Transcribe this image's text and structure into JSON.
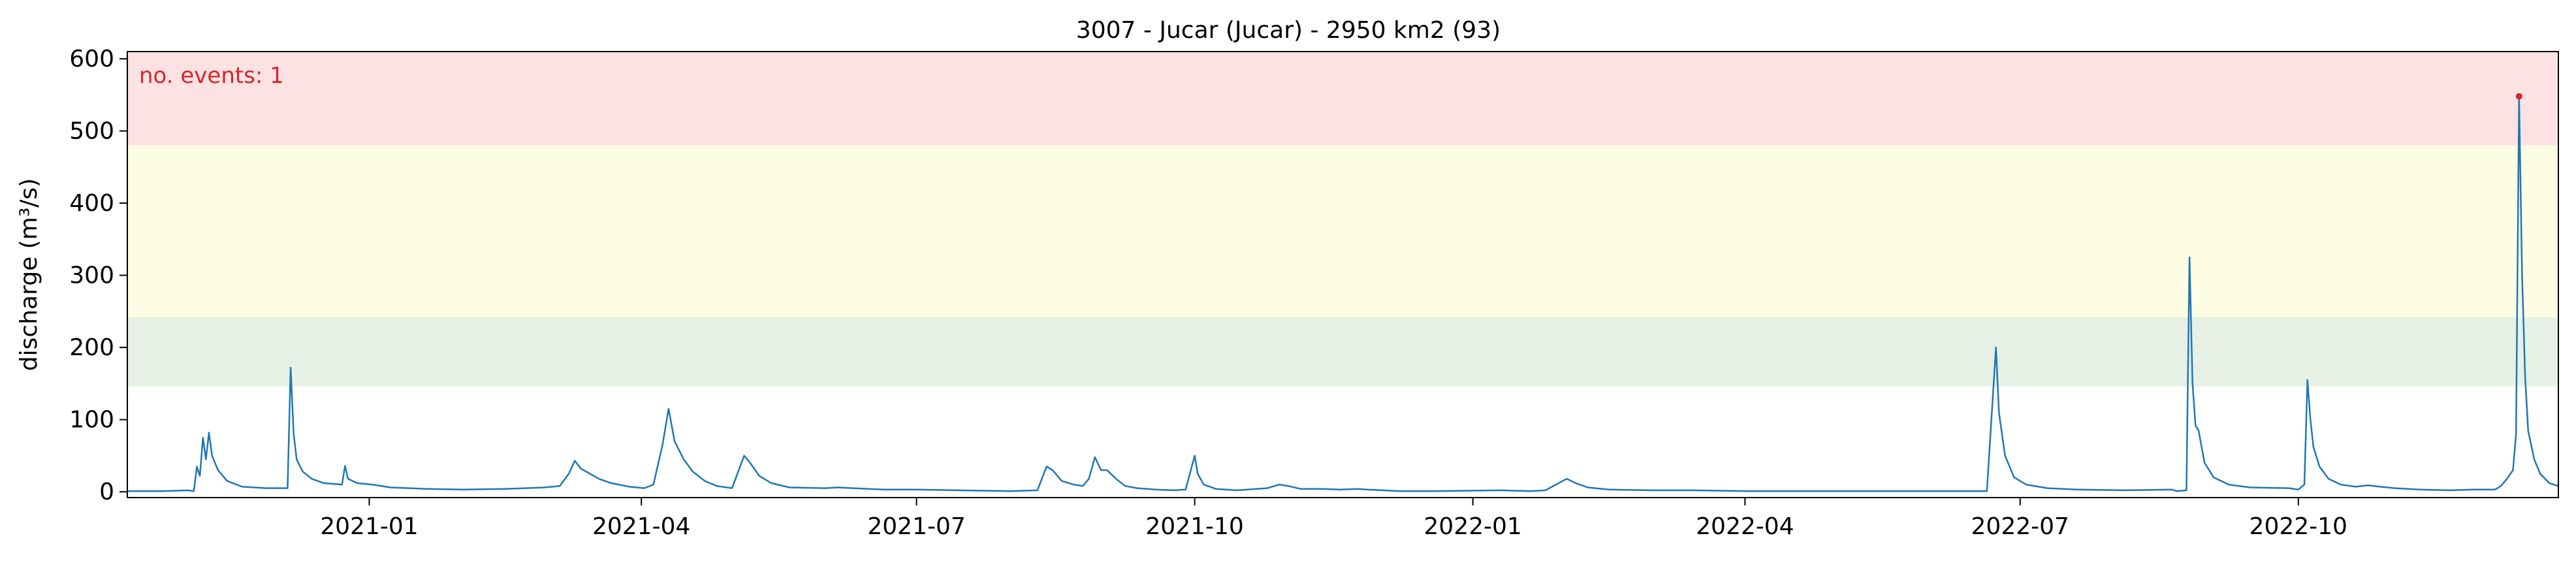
{
  "chart_data": {
    "type": "line",
    "title": "3007 - Jucar (Jucar) - 2950 km2 (93)",
    "xlabel": "",
    "ylabel": "discharge (m³/s)",
    "x_range": [
      "2020-10-13",
      "2022-12-26"
    ],
    "ylim": [
      -8,
      610
    ],
    "yticks": [
      0,
      100,
      200,
      300,
      400,
      500,
      600
    ],
    "xticks": [
      {
        "date": "2021-01-01",
        "label": "2021-01"
      },
      {
        "date": "2021-04-01",
        "label": "2021-04"
      },
      {
        "date": "2021-07-01",
        "label": "2021-07"
      },
      {
        "date": "2021-10-01",
        "label": "2021-10"
      },
      {
        "date": "2022-01-01",
        "label": "2022-01"
      },
      {
        "date": "2022-04-01",
        "label": "2022-04"
      },
      {
        "date": "2022-07-01",
        "label": "2022-07"
      },
      {
        "date": "2022-10-01",
        "label": "2022-10"
      }
    ],
    "threshold_bands": [
      {
        "from": 146,
        "to": 242,
        "color": "#e6f0e4"
      },
      {
        "from": 242,
        "to": 480,
        "color": "#fdfde3"
      },
      {
        "from": 480,
        "to": 610,
        "color": "#fde2e4"
      }
    ],
    "annotation": {
      "text": "no. events: 1",
      "color": "#d62728"
    },
    "series_color": "#1f77b4",
    "event_color": "#d62728",
    "events": [
      {
        "date": "2022-12-13",
        "value": 548
      }
    ],
    "grid": false,
    "series": [
      {
        "values": [
          [
            "2020-10-13",
            1
          ],
          [
            "2020-10-25",
            1
          ],
          [
            "2020-11-02",
            2
          ],
          [
            "2020-11-04",
            1
          ],
          [
            "2020-11-05",
            35
          ],
          [
            "2020-11-06",
            22
          ],
          [
            "2020-11-07",
            75
          ],
          [
            "2020-11-08",
            45
          ],
          [
            "2020-11-09",
            82
          ],
          [
            "2020-11-10",
            50
          ],
          [
            "2020-11-12",
            30
          ],
          [
            "2020-11-15",
            15
          ],
          [
            "2020-11-20",
            7
          ],
          [
            "2020-11-28",
            5
          ],
          [
            "2020-12-05",
            5
          ],
          [
            "2020-12-06",
            172
          ],
          [
            "2020-12-07",
            80
          ],
          [
            "2020-12-08",
            45
          ],
          [
            "2020-12-10",
            28
          ],
          [
            "2020-12-13",
            18
          ],
          [
            "2020-12-17",
            12
          ],
          [
            "2020-12-23",
            10
          ],
          [
            "2020-12-24",
            36
          ],
          [
            "2020-12-25",
            18
          ],
          [
            "2020-12-28",
            12
          ],
          [
            "2021-01-02",
            10
          ],
          [
            "2021-01-08",
            6
          ],
          [
            "2021-01-20",
            4
          ],
          [
            "2021-02-01",
            3
          ],
          [
            "2021-02-15",
            4
          ],
          [
            "2021-02-28",
            6
          ],
          [
            "2021-03-05",
            8
          ],
          [
            "2021-03-08",
            25
          ],
          [
            "2021-03-10",
            43
          ],
          [
            "2021-03-12",
            32
          ],
          [
            "2021-03-15",
            25
          ],
          [
            "2021-03-18",
            18
          ],
          [
            "2021-03-22",
            12
          ],
          [
            "2021-03-28",
            7
          ],
          [
            "2021-04-02",
            5
          ],
          [
            "2021-04-05",
            10
          ],
          [
            "2021-04-08",
            65
          ],
          [
            "2021-04-10",
            115
          ],
          [
            "2021-04-12",
            70
          ],
          [
            "2021-04-15",
            45
          ],
          [
            "2021-04-18",
            28
          ],
          [
            "2021-04-22",
            15
          ],
          [
            "2021-04-26",
            8
          ],
          [
            "2021-05-01",
            5
          ],
          [
            "2021-05-05",
            50
          ],
          [
            "2021-05-07",
            40
          ],
          [
            "2021-05-10",
            22
          ],
          [
            "2021-05-14",
            12
          ],
          [
            "2021-05-20",
            6
          ],
          [
            "2021-06-01",
            5
          ],
          [
            "2021-06-05",
            6
          ],
          [
            "2021-06-10",
            5
          ],
          [
            "2021-06-20",
            3
          ],
          [
            "2021-07-01",
            3
          ],
          [
            "2021-07-15",
            2
          ],
          [
            "2021-08-01",
            1
          ],
          [
            "2021-08-10",
            2
          ],
          [
            "2021-08-13",
            35
          ],
          [
            "2021-08-15",
            30
          ],
          [
            "2021-08-18",
            15
          ],
          [
            "2021-08-22",
            10
          ],
          [
            "2021-08-25",
            8
          ],
          [
            "2021-08-27",
            18
          ],
          [
            "2021-08-29",
            48
          ],
          [
            "2021-08-31",
            30
          ],
          [
            "2021-09-02",
            30
          ],
          [
            "2021-09-05",
            18
          ],
          [
            "2021-09-08",
            8
          ],
          [
            "2021-09-12",
            5
          ],
          [
            "2021-09-18",
            3
          ],
          [
            "2021-09-24",
            2
          ],
          [
            "2021-09-28",
            3
          ],
          [
            "2021-10-01",
            50
          ],
          [
            "2021-10-02",
            25
          ],
          [
            "2021-10-04",
            10
          ],
          [
            "2021-10-08",
            4
          ],
          [
            "2021-10-15",
            2
          ],
          [
            "2021-10-25",
            5
          ],
          [
            "2021-10-29",
            10
          ],
          [
            "2021-11-01",
            8
          ],
          [
            "2021-11-05",
            4
          ],
          [
            "2021-11-12",
            4
          ],
          [
            "2021-11-18",
            3
          ],
          [
            "2021-11-24",
            4
          ],
          [
            "2021-11-27",
            3
          ],
          [
            "2021-12-08",
            1
          ],
          [
            "2021-12-20",
            1
          ],
          [
            "2022-01-10",
            2
          ],
          [
            "2022-01-20",
            1
          ],
          [
            "2022-01-25",
            2
          ],
          [
            "2022-02-01",
            18
          ],
          [
            "2022-02-04",
            12
          ],
          [
            "2022-02-08",
            6
          ],
          [
            "2022-02-15",
            3
          ],
          [
            "2022-03-01",
            2
          ],
          [
            "2022-03-15",
            2
          ],
          [
            "2022-04-01",
            1
          ],
          [
            "2022-05-01",
            1
          ],
          [
            "2022-06-01",
            1
          ],
          [
            "2022-06-20",
            1
          ],
          [
            "2022-06-23",
            200
          ],
          [
            "2022-06-24",
            110
          ],
          [
            "2022-06-26",
            50
          ],
          [
            "2022-06-29",
            20
          ],
          [
            "2022-07-03",
            10
          ],
          [
            "2022-07-10",
            5
          ],
          [
            "2022-07-20",
            3
          ],
          [
            "2022-08-05",
            2
          ],
          [
            "2022-08-20",
            3
          ],
          [
            "2022-08-22",
            1
          ],
          [
            "2022-08-25",
            2
          ],
          [
            "2022-08-26",
            325
          ],
          [
            "2022-08-27",
            150
          ],
          [
            "2022-08-28",
            92
          ],
          [
            "2022-08-29",
            85
          ],
          [
            "2022-08-31",
            40
          ],
          [
            "2022-09-03",
            20
          ],
          [
            "2022-09-08",
            10
          ],
          [
            "2022-09-15",
            6
          ],
          [
            "2022-09-28",
            5
          ],
          [
            "2022-10-01",
            3
          ],
          [
            "2022-10-03",
            10
          ],
          [
            "2022-10-04",
            155
          ],
          [
            "2022-10-05",
            100
          ],
          [
            "2022-10-06",
            62
          ],
          [
            "2022-10-08",
            35
          ],
          [
            "2022-10-11",
            18
          ],
          [
            "2022-10-15",
            10
          ],
          [
            "2022-10-20",
            7
          ],
          [
            "2022-10-24",
            9
          ],
          [
            "2022-10-28",
            7
          ],
          [
            "2022-11-02",
            5
          ],
          [
            "2022-11-10",
            3
          ],
          [
            "2022-11-20",
            2
          ],
          [
            "2022-11-28",
            3
          ],
          [
            "2022-12-05",
            3
          ],
          [
            "2022-12-07",
            8
          ],
          [
            "2022-12-09",
            18
          ],
          [
            "2022-12-11",
            30
          ],
          [
            "2022-12-12",
            80
          ],
          [
            "2022-12-13",
            548
          ],
          [
            "2022-12-14",
            300
          ],
          [
            "2022-12-15",
            160
          ],
          [
            "2022-12-16",
            85
          ],
          [
            "2022-12-18",
            45
          ],
          [
            "2022-12-20",
            25
          ],
          [
            "2022-12-23",
            12
          ],
          [
            "2022-12-26",
            8
          ]
        ]
      }
    ]
  }
}
